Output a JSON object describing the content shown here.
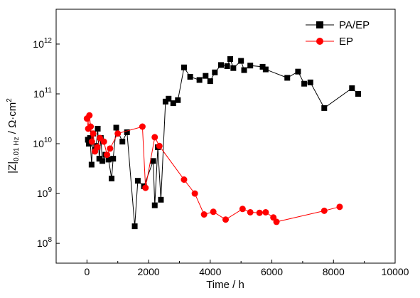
{
  "chart_data": {
    "type": "scatter",
    "title": "",
    "xlabel": "Time / h",
    "ylabel": {
      "main": "|Z|",
      "subscript": "0.01 Hz",
      "unit": " / Ω·cm",
      "unit_sup": "2"
    },
    "xlim": [
      -1000,
      10000
    ],
    "ylim": [
      40000000,
      5000000000000
    ],
    "yscale": "log",
    "xticks": [
      0,
      2000,
      4000,
      6000,
      8000,
      10000
    ],
    "xtick_labels": [
      "0",
      "2000",
      "4000",
      "6000",
      "8000",
      "10000"
    ],
    "yticks": [
      100000000,
      1000000000,
      10000000000,
      100000000000,
      1000000000000
    ],
    "ytick_labels": [
      {
        "base": "10",
        "exp": "8"
      },
      {
        "base": "10",
        "exp": "9"
      },
      {
        "base": "10",
        "exp": "10"
      },
      {
        "base": "10",
        "exp": "11"
      },
      {
        "base": "10",
        "exp": "12"
      }
    ],
    "grid": false,
    "legend": "top-right",
    "series": [
      {
        "name": "PA/EP",
        "color": "#000000",
        "marker": "square",
        "x": [
          30,
          60,
          100,
          150,
          200,
          260,
          300,
          350,
          400,
          450,
          500,
          600,
          700,
          800,
          850,
          950,
          1150,
          1300,
          1550,
          1650,
          1850,
          2150,
          2200,
          2300,
          2400,
          2550,
          2650,
          2800,
          2950,
          3150,
          3350,
          3650,
          3850,
          4000,
          4150,
          4350,
          4550,
          4650,
          4750,
          5000,
          5100,
          5300,
          5700,
          5800,
          6500,
          6850,
          7050,
          7250,
          7700,
          8600,
          8800
        ],
        "y": [
          12000000000,
          10000000000,
          13000000000,
          3800000000,
          16000000000,
          7500000000,
          9000000000,
          20000000000,
          5000000000,
          13000000000,
          4500000000,
          6000000000,
          4800000000,
          2000000000,
          5000000000,
          21000000000,
          11000000000,
          17000000000,
          220000000,
          1800000000,
          1400000000,
          4500000000,
          580000000,
          8500000000,
          750000000,
          70000000000,
          80000000000,
          65000000000,
          75000000000,
          340000000000,
          220000000000,
          190000000000,
          230000000000,
          180000000000,
          270000000000,
          380000000000,
          360000000000,
          500000000000,
          330000000000,
          460000000000,
          300000000000,
          370000000000,
          350000000000,
          310000000000,
          210000000000,
          280000000000,
          160000000000,
          170000000000,
          52000000000,
          130000000000,
          100000000000
        ]
      },
      {
        "name": "EP",
        "color": "#ff0000",
        "marker": "circle",
        "x": [
          0,
          40,
          80,
          120,
          160,
          200,
          260,
          340,
          420,
          550,
          650,
          750,
          1000,
          1800,
          1900,
          2200,
          2350,
          3150,
          3500,
          3800,
          4100,
          4500,
          5050,
          5300,
          5600,
          5800,
          6050,
          6150,
          7700,
          8200
        ],
        "y": [
          32000000000,
          20000000000,
          37000000000,
          22000000000,
          11000000000,
          16000000000,
          7000000000,
          8500000000,
          13000000000,
          11000000000,
          6000000000,
          8000000000,
          16000000000,
          22000000000,
          1300000000,
          13500000000,
          9000000000,
          1900000000,
          1000000000,
          380000000,
          430000000,
          300000000,
          490000000,
          420000000,
          410000000,
          420000000,
          330000000,
          270000000,
          450000000,
          540000000
        ]
      }
    ]
  }
}
